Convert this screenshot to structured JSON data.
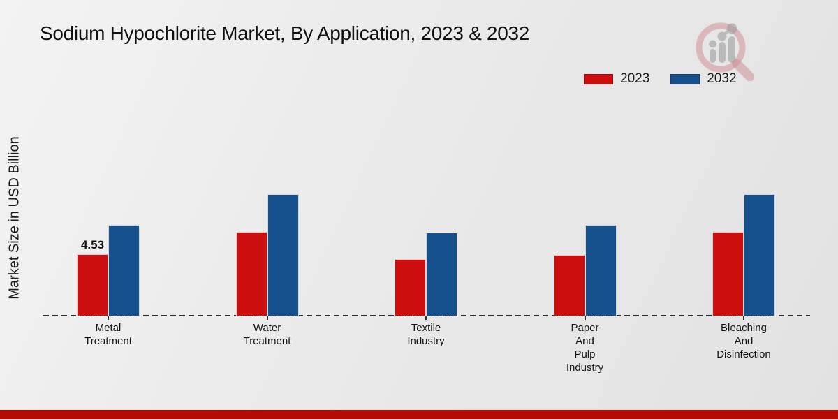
{
  "title": "Sodium Hypochlorite Market, By Application, 2023 & 2032",
  "ylabel": "Market Size in USD Billion",
  "legend": {
    "items": [
      {
        "label": "2023",
        "color": "#cc0f0e"
      },
      {
        "label": "2032",
        "color": "#15508c"
      }
    ]
  },
  "colors": {
    "bar_2023": "#cc0f0e",
    "bar_2032": "#15508c",
    "footer_strip": "#b50b02",
    "axis": "#2e2e2e",
    "background_light": "#f3f3f3",
    "background_dark": "#e2e2e2"
  },
  "chart_data": {
    "type": "bar",
    "title": "Sodium Hypochlorite Market, By Application, 2023 & 2032",
    "xlabel": "",
    "ylabel": "Market Size in USD Billion",
    "categories": [
      "Metal Treatment",
      "Water Treatment",
      "Textile Industry",
      "Paper And Pulp Industry",
      "Bleaching And Disinfection"
    ],
    "category_lines": [
      [
        "Metal",
        "Treatment"
      ],
      [
        "Water",
        "Treatment"
      ],
      [
        "Textile",
        "Industry"
      ],
      [
        "Paper",
        "And",
        "Pulp",
        "Industry"
      ],
      [
        "Bleaching",
        "And",
        "Disinfection"
      ]
    ],
    "series": [
      {
        "name": "2023",
        "color": "#cc0f0e",
        "values": [
          4.53,
          6.18,
          4.17,
          4.48,
          6.18
        ]
      },
      {
        "name": "2032",
        "color": "#15508c",
        "values": [
          6.69,
          8.96,
          6.13,
          6.69,
          8.96
        ]
      }
    ],
    "data_labels": [
      {
        "series": "2023",
        "category": "Metal Treatment",
        "text": "4.53"
      }
    ],
    "ylim": [
      0,
      10.3
    ],
    "y_axis_ticks_visible": false,
    "grid": false,
    "baseline_style": "dashed",
    "legend_position": "top-right"
  }
}
